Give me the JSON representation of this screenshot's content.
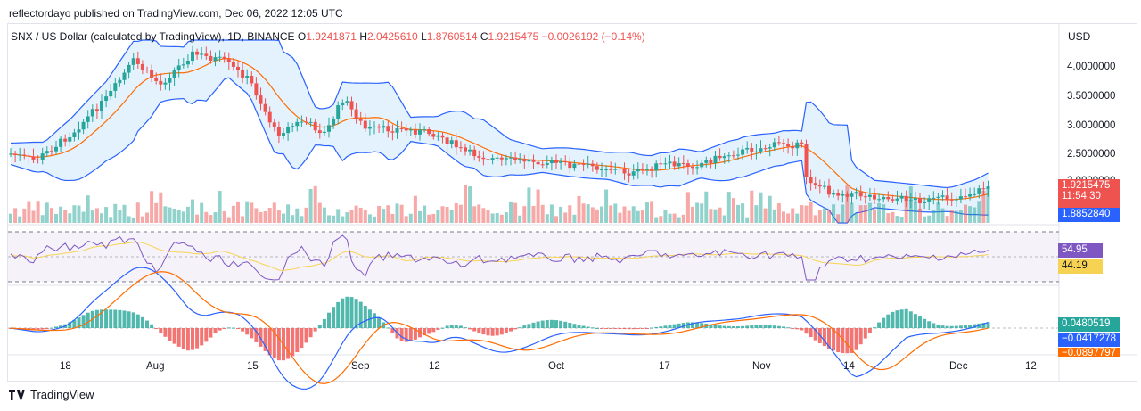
{
  "header": {
    "published_line": "reflectordayo published on TradingView.com, Dec 06, 2022 12:05 UTC"
  },
  "legend": {
    "symbol": "SNX / US Dollar (calculated by TradingView), 1D, BINANCE",
    "o_label": "O",
    "o_value": "1.9241871",
    "h_label": "H",
    "h_value": "2.0425610",
    "l_label": "L",
    "l_value": "1.8760514",
    "c_label": "C",
    "c_value": "1.9215475",
    "change": "−0.0026192 (−0.14%)"
  },
  "price_axis": {
    "currency": "USD",
    "ticks": [
      "4.0000000",
      "3.5000000",
      "3.0000000",
      "2.5000000",
      "2.0000000"
    ],
    "last_price": "1.9215475",
    "countdown": "11:54:30",
    "lower_band_value": "1.8852840"
  },
  "rsi_axis": {
    "rsi_value": "54.95",
    "rsi_ma_value": "44.19"
  },
  "macd_axis": {
    "hist_value": "0.0480519",
    "macd_value": "−0.0417278",
    "signal_value": "−0.0897797"
  },
  "time_axis": {
    "labels": [
      "18",
      "Aug",
      "15",
      "Sep",
      "12",
      "Oct",
      "17",
      "Nov",
      "14",
      "Dec",
      "12"
    ]
  },
  "footer": {
    "brand": "TradingView"
  },
  "colors": {
    "up": "#26a69a",
    "down": "#ef5350",
    "band": "#2962ff",
    "basis": "#ff6d00",
    "rsi": "#7e57c2",
    "rsi_ma": "#f7d354",
    "macd": "#2962ff",
    "signal": "#ff6d00"
  }
}
